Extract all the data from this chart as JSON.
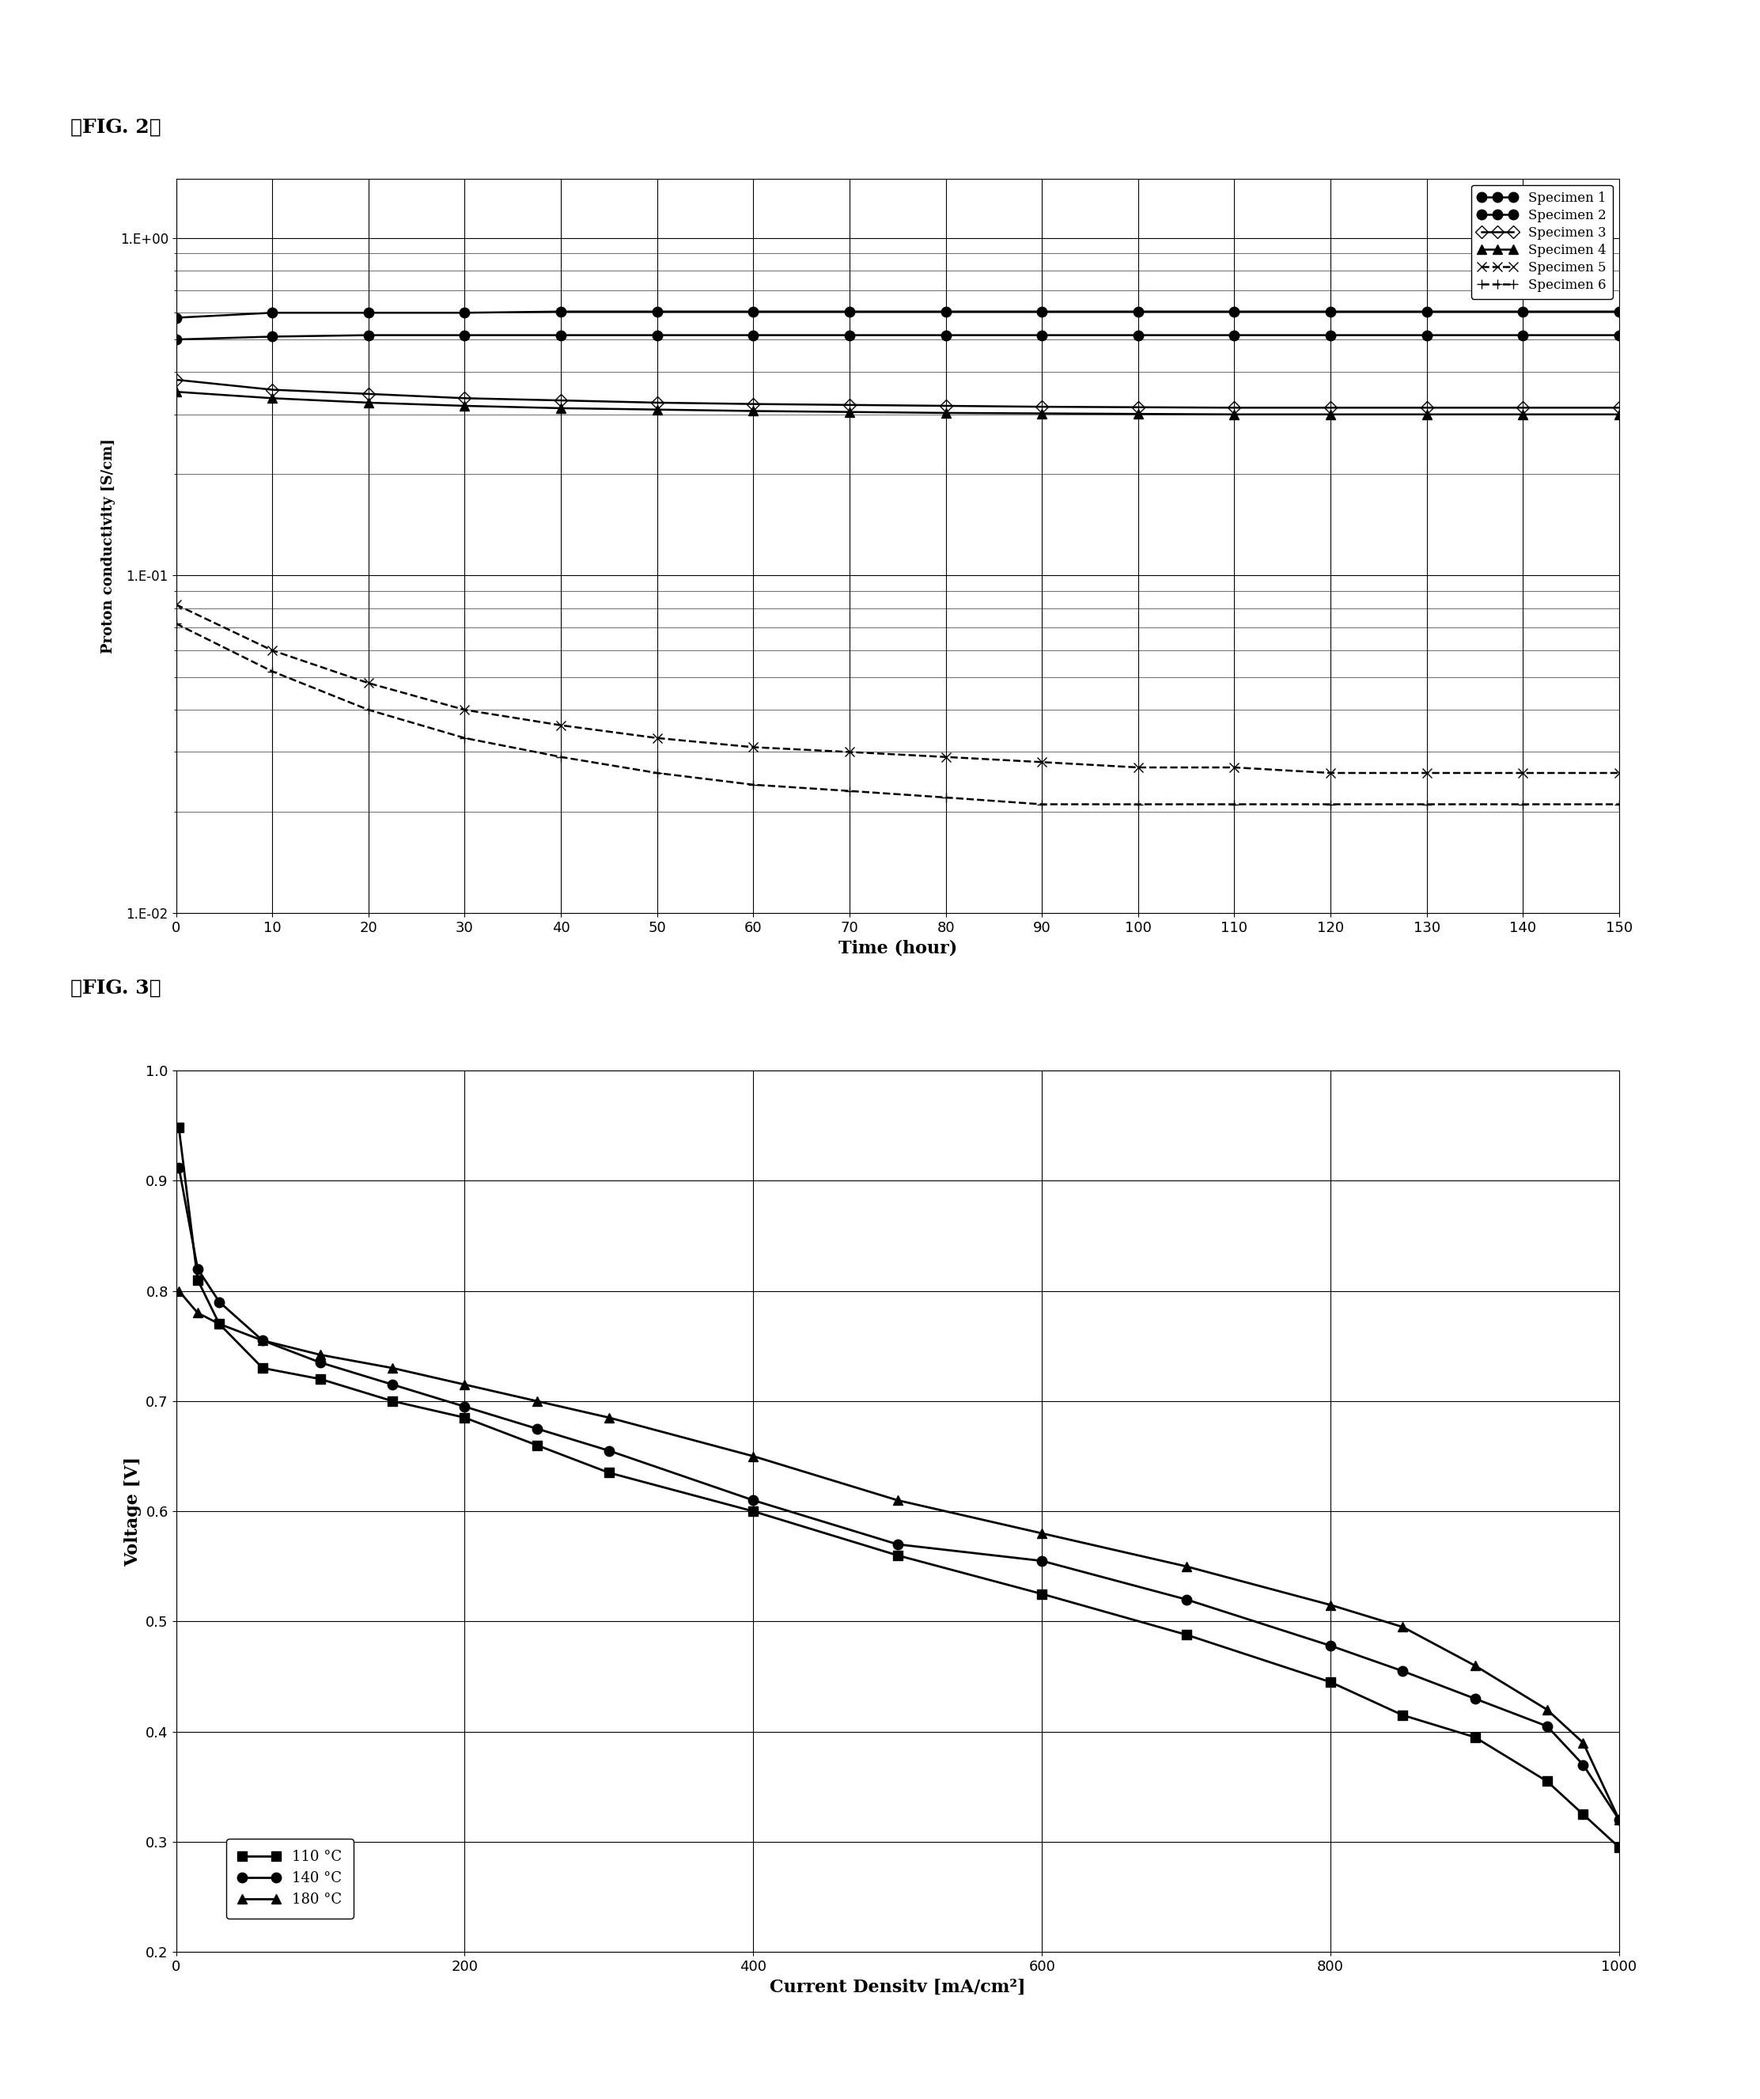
{
  "fig2_label": "【FIG. 2】",
  "fig3_label": "【FIG. 3】",
  "fig2_xlabel": "Time (hour)",
  "fig2_ylabel": "Proton conductivity [S/cm]",
  "fig2_xlim": [
    0,
    150
  ],
  "fig2_xticks": [
    0,
    10,
    20,
    30,
    40,
    50,
    60,
    70,
    80,
    90,
    100,
    110,
    120,
    130,
    140,
    150
  ],
  "specimens": {
    "Specimen 1": {
      "times": [
        0,
        10,
        20,
        30,
        40,
        50,
        60,
        70,
        80,
        90,
        100,
        110,
        120,
        130,
        140,
        150
      ],
      "values": [
        0.58,
        0.6,
        0.6,
        0.6,
        0.605,
        0.605,
        0.605,
        0.605,
        0.605,
        0.605,
        0.605,
        0.605,
        0.605,
        0.605,
        0.605,
        0.605
      ],
      "marker": "o",
      "linestyle": "-",
      "fillstyle": "full",
      "markersize": 9
    },
    "Specimen 2": {
      "times": [
        0,
        10,
        20,
        30,
        40,
        50,
        60,
        70,
        80,
        90,
        100,
        110,
        120,
        130,
        140,
        150
      ],
      "values": [
        0.5,
        0.51,
        0.515,
        0.515,
        0.515,
        0.515,
        0.515,
        0.515,
        0.515,
        0.515,
        0.515,
        0.515,
        0.515,
        0.515,
        0.515,
        0.515
      ],
      "marker": "o",
      "linestyle": "-",
      "fillstyle": "full",
      "markersize": 9
    },
    "Specimen 3": {
      "times": [
        0,
        10,
        20,
        30,
        40,
        50,
        60,
        70,
        80,
        90,
        100,
        110,
        120,
        130,
        140,
        150
      ],
      "values": [
        0.38,
        0.355,
        0.345,
        0.335,
        0.33,
        0.325,
        0.322,
        0.32,
        0.318,
        0.316,
        0.315,
        0.314,
        0.314,
        0.314,
        0.314,
        0.314
      ],
      "marker": "D",
      "linestyle": "-",
      "fillstyle": "none",
      "markersize": 8
    },
    "Specimen 4": {
      "times": [
        0,
        10,
        20,
        30,
        40,
        50,
        60,
        70,
        80,
        90,
        100,
        110,
        120,
        130,
        140,
        150
      ],
      "values": [
        0.35,
        0.335,
        0.325,
        0.318,
        0.313,
        0.31,
        0.307,
        0.305,
        0.303,
        0.302,
        0.301,
        0.3,
        0.3,
        0.3,
        0.3,
        0.3
      ],
      "marker": "^",
      "linestyle": "-",
      "fillstyle": "full",
      "markersize": 8
    },
    "Specimen 5": {
      "times": [
        0,
        10,
        20,
        30,
        40,
        50,
        60,
        70,
        80,
        90,
        100,
        110,
        120,
        130,
        140,
        150
      ],
      "values": [
        0.082,
        0.06,
        0.048,
        0.04,
        0.036,
        0.033,
        0.031,
        0.03,
        0.029,
        0.028,
        0.027,
        0.027,
        0.026,
        0.026,
        0.026,
        0.026
      ],
      "marker": "x",
      "linestyle": "--",
      "fillstyle": "full",
      "markersize": 9
    },
    "Specimen 6": {
      "times": [
        0,
        10,
        20,
        30,
        40,
        50,
        60,
        70,
        80,
        90,
        100,
        110,
        120,
        130,
        140,
        150
      ],
      "values": [
        0.072,
        0.052,
        0.04,
        0.033,
        0.029,
        0.026,
        0.024,
        0.023,
        0.022,
        0.021,
        0.021,
        0.021,
        0.021,
        0.021,
        0.021,
        0.021
      ],
      "marker": "+",
      "linestyle": "--",
      "fillstyle": "full",
      "markersize": 9
    }
  },
  "fig3_xlabel": "Current Densitv [mA/cm²]",
  "fig3_ylabel": "Voltage [V]",
  "fig3_xlim": [
    0,
    1000
  ],
  "fig3_ylim": [
    0.2,
    1.0
  ],
  "fig3_yticks": [
    0.2,
    0.3,
    0.4,
    0.5,
    0.6,
    0.7,
    0.8,
    0.9,
    1.0
  ],
  "fig3_xticks": [
    0,
    200,
    400,
    600,
    800,
    1000
  ],
  "polarization": {
    "110C": {
      "x": [
        2,
        15,
        30,
        60,
        100,
        150,
        200,
        250,
        300,
        400,
        500,
        600,
        700,
        800,
        850,
        900,
        950,
        975,
        1000
      ],
      "y": [
        0.948,
        0.81,
        0.77,
        0.73,
        0.72,
        0.7,
        0.685,
        0.66,
        0.635,
        0.6,
        0.56,
        0.525,
        0.488,
        0.445,
        0.415,
        0.395,
        0.355,
        0.325,
        0.295
      ],
      "marker": "s",
      "fillstyle": "full",
      "label": "110 °C"
    },
    "140C": {
      "x": [
        2,
        15,
        30,
        60,
        100,
        150,
        200,
        250,
        300,
        400,
        500,
        600,
        700,
        800,
        850,
        900,
        950,
        975,
        1000
      ],
      "y": [
        0.912,
        0.82,
        0.79,
        0.755,
        0.735,
        0.715,
        0.695,
        0.675,
        0.655,
        0.61,
        0.57,
        0.555,
        0.52,
        0.478,
        0.455,
        0.43,
        0.405,
        0.37,
        0.32
      ],
      "marker": "o",
      "fillstyle": "full",
      "label": "140 °C"
    },
    "180C": {
      "x": [
        2,
        15,
        30,
        60,
        100,
        150,
        200,
        250,
        300,
        400,
        500,
        600,
        700,
        800,
        850,
        900,
        950,
        975,
        1000
      ],
      "y": [
        0.8,
        0.78,
        0.77,
        0.755,
        0.742,
        0.73,
        0.715,
        0.7,
        0.685,
        0.65,
        0.61,
        0.58,
        0.55,
        0.515,
        0.495,
        0.46,
        0.42,
        0.39,
        0.32
      ],
      "marker": "^",
      "fillstyle": "full",
      "label": "180 °C"
    }
  }
}
